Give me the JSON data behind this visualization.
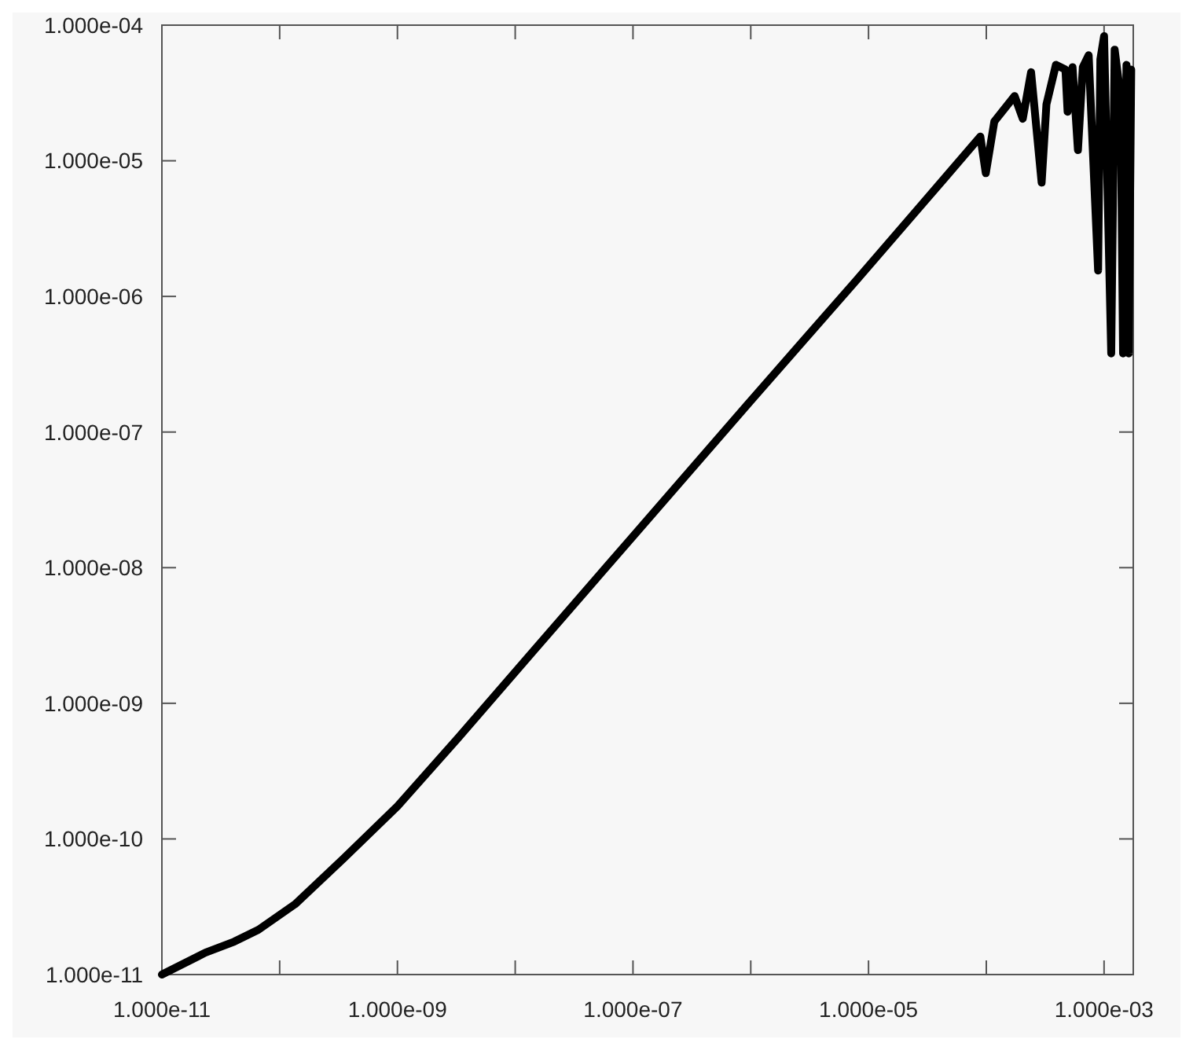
{
  "chart_data": {
    "type": "line",
    "log": "xy",
    "grid": false,
    "marker": "none",
    "line_style": "solid",
    "xlim": [
      1e-11,
      0.00177
    ],
    "ylim": [
      1e-11,
      0.0001
    ],
    "xticks": [
      {
        "value": 1e-11,
        "label": "1.000e-11"
      },
      {
        "value": 1e-10,
        "label": null
      },
      {
        "value": 1e-09,
        "label": "1.000e-09"
      },
      {
        "value": 1e-08,
        "label": null
      },
      {
        "value": 1e-07,
        "label": "1.000e-07"
      },
      {
        "value": 1e-06,
        "label": null
      },
      {
        "value": 1e-05,
        "label": "1.000e-05"
      },
      {
        "value": 0.0001,
        "label": null
      },
      {
        "value": 0.001,
        "label": "1.000e-03"
      }
    ],
    "yticks": [
      {
        "value": 1e-11,
        "label": "1.000e-11"
      },
      {
        "value": 1e-10,
        "label": "1.000e-10"
      },
      {
        "value": 1e-09,
        "label": "1.000e-09"
      },
      {
        "value": 1e-08,
        "label": "1.000e-08"
      },
      {
        "value": 1e-07,
        "label": "1.000e-07"
      },
      {
        "value": 1e-06,
        "label": "1.000e-06"
      },
      {
        "value": 1e-05,
        "label": "1.000e-05"
      },
      {
        "value": 0.0001,
        "label": "1.000e-04"
      }
    ],
    "series": [
      {
        "color": "#000000",
        "x": [
          1e-11,
          2.34e-11,
          4.12e-11,
          6.6e-11,
          1.35e-10,
          3.5e-10,
          1e-09,
          3.3e-09,
          1.41e-08,
          1e-07,
          1e-06,
          7.8e-06,
          4.4e-05,
          8.9e-05,
          9.9e-05,
          0.000117,
          0.000174,
          0.000204,
          0.00024,
          0.000295,
          0.000324,
          0.00039,
          0.00047,
          0.00049,
          0.00054,
          0.0006,
          0.00066,
          0.00074,
          0.00089,
          0.00093,
          0.001,
          0.00115,
          0.00123,
          0.00138,
          0.00145,
          0.00155,
          0.00162,
          0.0017
        ],
        "values": [
          1e-11,
          1.45e-11,
          1.75e-11,
          2.14e-11,
          3.3e-11,
          7.2e-11,
          1.74e-10,
          5.6e-10,
          2.4e-09,
          1.7e-08,
          1.7e-07,
          1.3e-06,
          7.4e-06,
          1.51e-05,
          8.1e-06,
          1.95e-05,
          3e-05,
          2.04e-05,
          4.5e-05,
          6.9e-06,
          2.6e-05,
          5.1e-05,
          4.7e-05,
          2.3e-05,
          4.9e-05,
          1.2e-05,
          4.9e-05,
          6e-05,
          1.55e-06,
          5.6e-05,
          8.3e-05,
          3.8e-07,
          6.6e-05,
          3e-05,
          3.8e-07,
          5.1e-05,
          3.8e-07,
          4.7e-05
        ]
      }
    ]
  }
}
